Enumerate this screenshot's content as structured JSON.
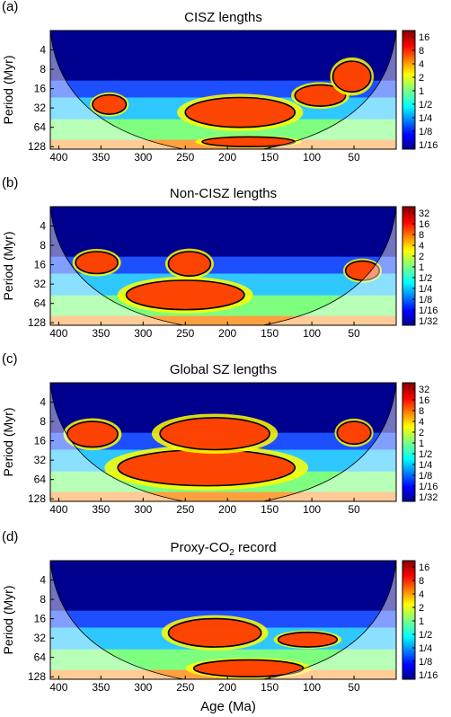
{
  "figure": {
    "xlabel": "Age (Ma)",
    "ylabel": "Period (Myr)"
  },
  "chart_data": [
    {
      "type": "heatmap",
      "panel": "(a)",
      "title": "CISZ lengths",
      "title_sub": "",
      "xlabel": "",
      "ylabel": "Period (Myr)",
      "x_ticks": [
        "400",
        "350",
        "300",
        "250",
        "200",
        "150",
        "100",
        "50"
      ],
      "x_tick_values": [
        400,
        350,
        300,
        250,
        200,
        150,
        100,
        50
      ],
      "xlim": [
        410,
        0
      ],
      "y_ticks": [
        "4",
        "8",
        "16",
        "32",
        "64",
        "128"
      ],
      "y_tick_values": [
        4,
        8,
        16,
        32,
        64,
        128
      ],
      "ylim": [
        2,
        140
      ],
      "y_scale": "log2",
      "colorbar_ticks": [
        "16",
        "8",
        "4",
        "2",
        "1",
        "1/2",
        "1/4",
        "1/8",
        "1/16"
      ],
      "colorbar_range": [
        0.0625,
        16
      ],
      "colormap": "jet",
      "high_power_regions": [
        {
          "x": [
            360,
            320
          ],
          "y": [
            20,
            40
          ]
        },
        {
          "x": [
            250,
            120
          ],
          "y": [
            22,
            64
          ]
        },
        {
          "x": [
            230,
            120
          ],
          "y": [
            90,
            128
          ]
        },
        {
          "x": [
            120,
            60
          ],
          "y": [
            14,
            30
          ]
        },
        {
          "x": [
            75,
            30
          ],
          "y": [
            6,
            18
          ]
        }
      ]
    },
    {
      "type": "heatmap",
      "panel": "(b)",
      "title": "Non-CISZ lengths",
      "title_sub": "",
      "xlabel": "",
      "ylabel": "Period (Myr)",
      "x_ticks": [
        "400",
        "350",
        "300",
        "250",
        "200",
        "150",
        "100",
        "50"
      ],
      "x_tick_values": [
        400,
        350,
        300,
        250,
        200,
        150,
        100,
        50
      ],
      "xlim": [
        410,
        0
      ],
      "y_ticks": [
        "4",
        "8",
        "16",
        "32",
        "64",
        "128"
      ],
      "y_tick_values": [
        4,
        8,
        16,
        32,
        64,
        128
      ],
      "ylim": [
        2,
        140
      ],
      "y_scale": "log2",
      "colorbar_ticks": [
        "32",
        "16",
        "8",
        "4",
        "2",
        "1",
        "1/2",
        "1/4",
        "1/8",
        "1/16",
        "1/32"
      ],
      "colorbar_range": [
        0.03125,
        32
      ],
      "colormap": "jet",
      "high_power_regions": [
        {
          "x": [
            320,
            180
          ],
          "y": [
            28,
            80
          ]
        },
        {
          "x": [
            380,
            330
          ],
          "y": [
            10,
            22
          ]
        },
        {
          "x": [
            270,
            220
          ],
          "y": [
            10,
            24
          ]
        },
        {
          "x": [
            60,
            20
          ],
          "y": [
            14,
            28
          ]
        }
      ]
    },
    {
      "type": "heatmap",
      "panel": "(c)",
      "title": "Global SZ lengths",
      "title_sub": "",
      "xlabel": "",
      "ylabel": "Period (Myr)",
      "x_ticks": [
        "400",
        "350",
        "300",
        "250",
        "200",
        "150",
        "100",
        "50"
      ],
      "x_tick_values": [
        400,
        350,
        300,
        250,
        200,
        150,
        100,
        50
      ],
      "xlim": [
        410,
        0
      ],
      "y_ticks": [
        "4",
        "8",
        "16",
        "32",
        "64",
        "128"
      ],
      "y_tick_values": [
        4,
        8,
        16,
        32,
        64,
        128
      ],
      "ylim": [
        2,
        140
      ],
      "y_scale": "log2",
      "colorbar_ticks": [
        "32",
        "16",
        "8",
        "4",
        "2",
        "1",
        "1/2",
        "1/4",
        "1/8",
        "1/16",
        "1/32"
      ],
      "colorbar_range": [
        0.03125,
        32
      ],
      "colormap": "jet",
      "high_power_regions": [
        {
          "x": [
            330,
            120
          ],
          "y": [
            22,
            80
          ]
        },
        {
          "x": [
            390,
            330
          ],
          "y": [
            8,
            20
          ]
        },
        {
          "x": [
            280,
            150
          ],
          "y": [
            7,
            22
          ]
        },
        {
          "x": [
            70,
            30
          ],
          "y": [
            8,
            18
          ]
        }
      ]
    },
    {
      "type": "heatmap",
      "panel": "(d)",
      "title": "Proxy-CO",
      "title_sub": "2",
      "title_suffix": " record",
      "xlabel": "Age (Ma)",
      "ylabel": "Period (Myr)",
      "x_ticks": [
        "400",
        "350",
        "300",
        "250",
        "200",
        "150",
        "100",
        "50"
      ],
      "x_tick_values": [
        400,
        350,
        300,
        250,
        200,
        150,
        100,
        50
      ],
      "xlim": [
        410,
        0
      ],
      "y_ticks": [
        "4",
        "8",
        "16",
        "32",
        "64",
        "128"
      ],
      "y_tick_values": [
        4,
        8,
        16,
        32,
        64,
        128
      ],
      "ylim": [
        2,
        140
      ],
      "y_scale": "log2",
      "colorbar_ticks": [
        "16",
        "8",
        "4",
        "2",
        "1",
        "1/2",
        "1/4",
        "1/8",
        "1/16"
      ],
      "colorbar_range": [
        0.0625,
        16
      ],
      "colormap": "jet",
      "high_power_regions": [
        {
          "x": [
            270,
            160
          ],
          "y": [
            16,
            44
          ]
        },
        {
          "x": [
            240,
            110
          ],
          "y": [
            70,
            128
          ]
        },
        {
          "x": [
            140,
            70
          ],
          "y": [
            26,
            44
          ]
        }
      ]
    }
  ]
}
